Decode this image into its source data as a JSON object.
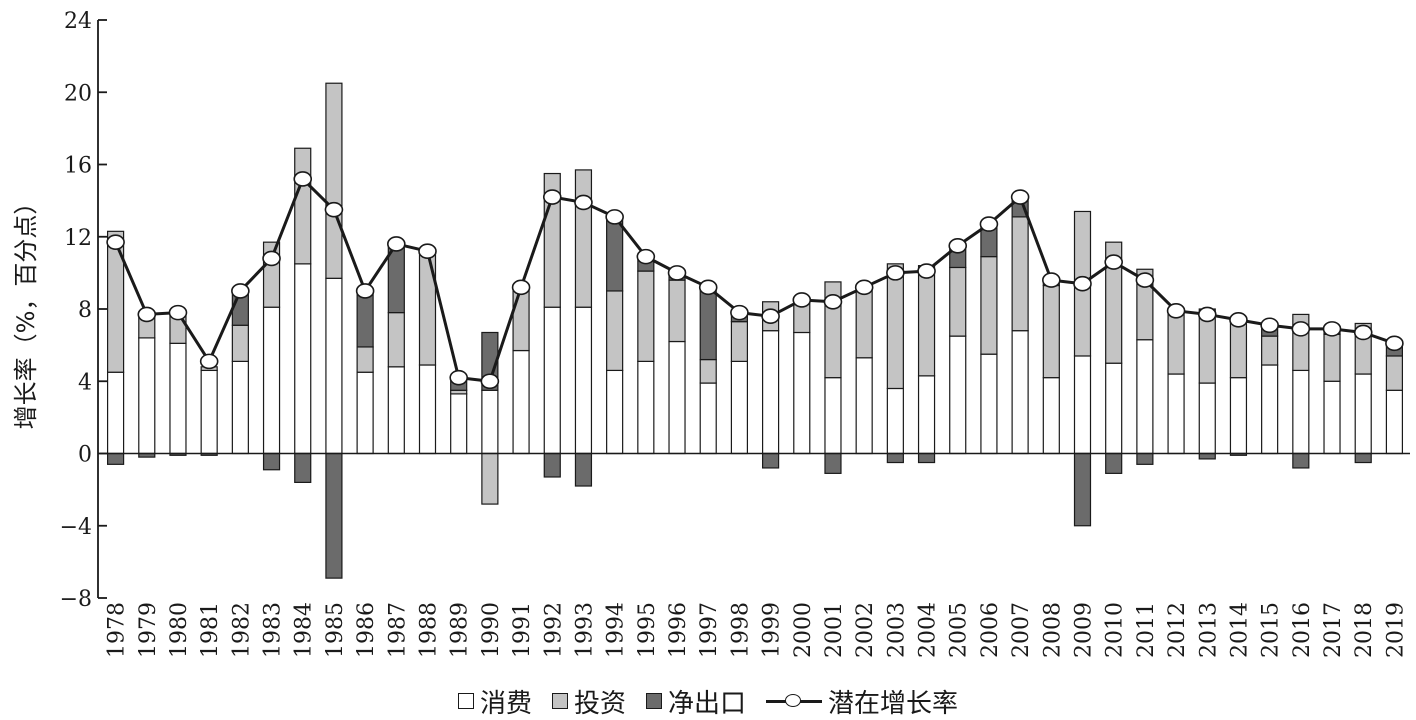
{
  "chart_data": {
    "type": "bar",
    "stacked": true,
    "ylabel": "增长率（%，百分点）",
    "ylim": [
      -8,
      24
    ],
    "yticks": [
      -8,
      -4,
      0,
      4,
      8,
      12,
      16,
      20,
      24
    ],
    "ytick_labels": [
      "−8",
      "−4",
      "0",
      "4",
      "8",
      "12",
      "16",
      "20",
      "24"
    ],
    "grid": false,
    "legend_position": "bottom",
    "colors": {
      "consumption": "#ffffff",
      "investment": "#c4c4c4",
      "net_export": "#6b6b6b",
      "line": "#1a1a1a",
      "edge": "#1a1a1a"
    },
    "categories": [
      "1978",
      "1979",
      "1980",
      "1981",
      "1982",
      "1983",
      "1984",
      "1985",
      "1986",
      "1987",
      "1988",
      "1989",
      "1990",
      "1991",
      "1992",
      "1993",
      "1994",
      "1995",
      "1996",
      "1997",
      "1998",
      "1999",
      "2000",
      "2001",
      "2002",
      "2003",
      "2004",
      "2005",
      "2006",
      "2007",
      "2008",
      "2009",
      "2010",
      "2011",
      "2012",
      "2013",
      "2014",
      "2015",
      "2016",
      "2017",
      "2018",
      "2019"
    ],
    "series": [
      {
        "name": "消费",
        "type": "bar",
        "values": [
          4.5,
          6.4,
          6.1,
          4.6,
          5.1,
          8.1,
          10.5,
          9.7,
          4.5,
          4.8,
          4.9,
          3.3,
          3.5,
          5.7,
          8.1,
          8.1,
          4.6,
          5.1,
          6.2,
          3.9,
          5.1,
          6.8,
          6.7,
          4.2,
          5.3,
          3.6,
          4.3,
          6.5,
          5.5,
          6.8,
          4.2,
          5.4,
          5.0,
          6.3,
          4.4,
          3.9,
          4.2,
          4.9,
          4.6,
          4.0,
          4.4,
          3.5
        ]
      },
      {
        "name": "投资",
        "type": "bar",
        "values": [
          7.8,
          1.2,
          1.6,
          0.2,
          2.0,
          3.6,
          6.4,
          10.8,
          1.4,
          3.0,
          6.4,
          0.2,
          -2.8,
          3.6,
          7.4,
          7.6,
          4.4,
          5.0,
          3.4,
          1.3,
          2.2,
          1.6,
          1.8,
          5.3,
          4.0,
          6.9,
          6.1,
          3.8,
          5.4,
          6.3,
          5.1,
          8.0,
          6.7,
          3.9,
          3.4,
          4.1,
          3.1,
          1.6,
          3.1,
          2.6,
          2.8,
          1.9
        ]
      },
      {
        "name": "净出口",
        "type": "bar",
        "values": [
          -0.6,
          -0.2,
          -0.1,
          -0.1,
          1.9,
          -0.9,
          -1.6,
          -6.9,
          3.0,
          3.9,
          0.0,
          0.8,
          3.2,
          0.0,
          -1.3,
          -1.8,
          4.0,
          0.8,
          0.3,
          3.9,
          0.4,
          -0.8,
          0.0,
          -1.1,
          0.0,
          -0.5,
          -0.5,
          1.0,
          1.8,
          1.0,
          0.2,
          -4.0,
          -1.1,
          -0.6,
          0.1,
          -0.3,
          -0.1,
          0.5,
          -0.8,
          0.3,
          -0.5,
          0.6
        ]
      },
      {
        "name": "潜在增长率",
        "type": "line",
        "values": [
          11.7,
          7.7,
          7.8,
          5.1,
          9.0,
          10.8,
          15.2,
          13.5,
          9.0,
          11.6,
          11.2,
          4.2,
          4.0,
          9.2,
          14.2,
          13.9,
          13.1,
          10.9,
          10.0,
          9.2,
          7.8,
          7.6,
          8.5,
          8.4,
          9.2,
          10.0,
          10.1,
          11.5,
          12.7,
          14.2,
          9.6,
          9.4,
          10.6,
          9.6,
          7.9,
          7.7,
          7.4,
          7.1,
          6.9,
          6.9,
          6.7,
          6.1
        ]
      }
    ]
  },
  "legend": {
    "consumption_label": "消费",
    "investment_label": "投资",
    "net_export_label": "净出口",
    "potential_label": "潜在增长率"
  }
}
